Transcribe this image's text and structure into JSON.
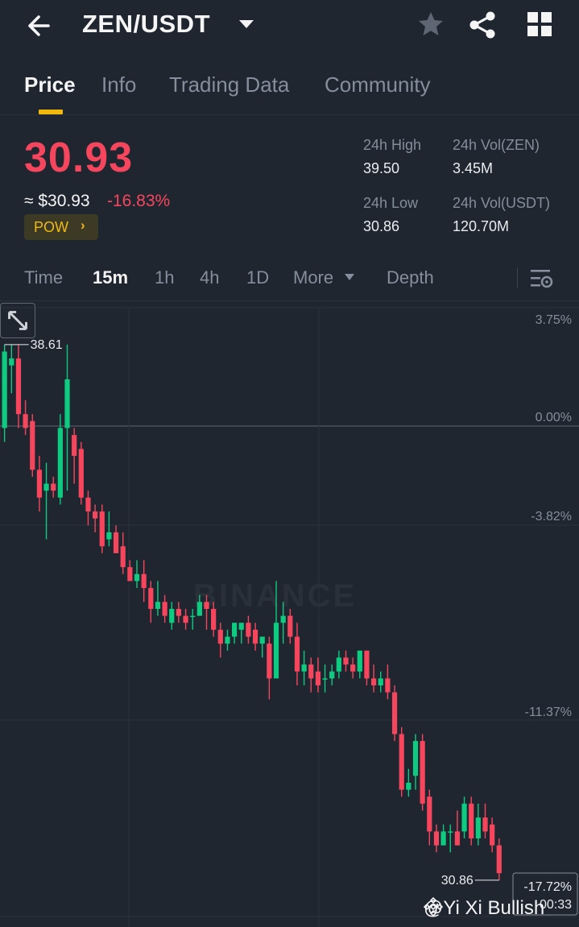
{
  "header": {
    "pair": "ZEN/USDT",
    "back_icon": "arrow-left-icon",
    "star_icon": "star-icon",
    "share_icon": "share-icon",
    "grid_icon": "grid-icon"
  },
  "tabs": [
    {
      "label": "Price"
    },
    {
      "label": "Info"
    },
    {
      "label": "Trading Data"
    },
    {
      "label": "Community"
    }
  ],
  "price": {
    "last": "30.93",
    "usd": "≈ $30.93",
    "change": "-16.83%",
    "tag": "POW",
    "tag_arrow": "›",
    "color_down": "#f6465d",
    "color_up": "#0ecb81",
    "accent": "#f0b90b"
  },
  "stats": {
    "high_label": "24h High",
    "high_value": "39.50",
    "low_label": "24h Low",
    "low_value": "30.86",
    "vol_zen_label": "24h Vol(ZEN)",
    "vol_zen_value": "3.45M",
    "vol_usdt_label": "24h Vol(USDT)",
    "vol_usdt_value": "120.70M"
  },
  "intervals": [
    {
      "label": "Time"
    },
    {
      "label": "15m"
    },
    {
      "label": "1h"
    },
    {
      "label": "4h"
    },
    {
      "label": "1D"
    },
    {
      "label": "More"
    },
    {
      "label": "Depth"
    }
  ],
  "chart_data": {
    "type": "candlestick",
    "watermark": "BINANCE",
    "y_axis_labels": [
      "3.75%",
      "0.00%",
      "-3.82%",
      "-11.37%"
    ],
    "max_label": "38.61",
    "min_label": "30.86",
    "current_change": "-17.72%",
    "current_countdown": "00:33",
    "ylim": [
      30.4,
      39.2
    ],
    "candles": [
      [
        37.6,
        37.2,
        38.0,
        37.1
      ],
      [
        37.4,
        38.5,
        38.6,
        37.2
      ],
      [
        38.3,
        38.4,
        38.6,
        37.9
      ],
      [
        38.4,
        37.6,
        38.6,
        37.4
      ],
      [
        37.6,
        37.4,
        37.8,
        37.3
      ],
      [
        37.5,
        36.8,
        37.6,
        36.7
      ],
      [
        36.8,
        36.4,
        37.0,
        36.2
      ],
      [
        36.5,
        36.6,
        36.9,
        35.8
      ],
      [
        36.6,
        36.5,
        36.7,
        36.4
      ],
      [
        36.4,
        37.4,
        37.6,
        36.3
      ],
      [
        37.4,
        38.1,
        38.6,
        36.5
      ],
      [
        37.3,
        37.0,
        37.4,
        36.6
      ],
      [
        37.1,
        36.4,
        37.2,
        36.3
      ],
      [
        36.4,
        36.2,
        36.5,
        36.0
      ],
      [
        36.2,
        36.1,
        36.3,
        35.9
      ],
      [
        36.2,
        35.7,
        36.3,
        35.6
      ],
      [
        35.8,
        35.9,
        36.2,
        35.7
      ],
      [
        35.9,
        35.6,
        36.0,
        35.6
      ],
      [
        35.7,
        35.4,
        35.9,
        35.3
      ],
      [
        35.4,
        35.2,
        35.5,
        35.2
      ],
      [
        35.2,
        35.3,
        35.5,
        35.1
      ],
      [
        35.3,
        35.1,
        35.5,
        34.9
      ],
      [
        35.1,
        34.8,
        35.2,
        34.6
      ],
      [
        34.8,
        34.9,
        35.2,
        34.7
      ],
      [
        34.9,
        34.7,
        35.0,
        34.6
      ],
      [
        34.6,
        34.8,
        34.9,
        34.5
      ],
      [
        34.8,
        34.7,
        34.9,
        34.6
      ],
      [
        34.7,
        34.6,
        34.8,
        34.5
      ],
      [
        34.7,
        34.7,
        34.8,
        34.5
      ],
      [
        34.7,
        34.9,
        35.0,
        34.7
      ],
      [
        34.9,
        34.8,
        35.0,
        34.5
      ],
      [
        34.8,
        34.5,
        34.9,
        34.4
      ],
      [
        34.5,
        34.3,
        34.6,
        34.1
      ],
      [
        34.3,
        34.4,
        34.5,
        34.2
      ],
      [
        34.4,
        34.6,
        34.6,
        34.3
      ],
      [
        34.5,
        34.6,
        34.6,
        34.3
      ],
      [
        34.6,
        34.4,
        34.7,
        34.3
      ],
      [
        34.5,
        34.3,
        34.6,
        34.2
      ],
      [
        34.3,
        34.4,
        34.4,
        34.1
      ],
      [
        34.3,
        33.8,
        34.4,
        33.5
      ],
      [
        33.8,
        34.6,
        35.2,
        33.8
      ],
      [
        34.6,
        34.7,
        34.9,
        34.3
      ],
      [
        34.7,
        34.4,
        34.8,
        34.3
      ],
      [
        34.4,
        33.9,
        34.6,
        33.7
      ],
      [
        33.9,
        34.0,
        34.2,
        33.7
      ],
      [
        34.0,
        33.8,
        34.1,
        33.6
      ],
      [
        33.9,
        33.7,
        34.1,
        33.6
      ],
      [
        33.8,
        33.8,
        34.0,
        33.6
      ],
      [
        33.8,
        33.9,
        34.0,
        33.7
      ],
      [
        33.9,
        34.1,
        34.2,
        33.8
      ],
      [
        34.1,
        34.0,
        34.2,
        33.9
      ],
      [
        34.0,
        33.9,
        34.1,
        33.8
      ],
      [
        33.9,
        34.2,
        34.2,
        33.8
      ],
      [
        34.2,
        33.8,
        34.2,
        33.7
      ],
      [
        33.8,
        33.7,
        34.0,
        33.6
      ],
      [
        33.7,
        33.8,
        33.9,
        33.6
      ],
      [
        33.8,
        33.6,
        34.0,
        33.5
      ],
      [
        33.6,
        33.0,
        33.7,
        32.9
      ],
      [
        33.0,
        32.2,
        33.1,
        32.1
      ],
      [
        32.2,
        32.3,
        32.5,
        32.1
      ],
      [
        32.4,
        32.9,
        33.0,
        32.2
      ],
      [
        32.9,
        32.0,
        33.0,
        31.9
      ],
      [
        32.1,
        31.6,
        32.2,
        31.4
      ],
      [
        31.6,
        31.4,
        31.7,
        31.3
      ],
      [
        31.4,
        31.6,
        31.7,
        31.4
      ],
      [
        31.6,
        31.6,
        31.7,
        31.3
      ],
      [
        31.6,
        31.4,
        31.9,
        31.4
      ],
      [
        31.6,
        32.0,
        32.1,
        31.5
      ],
      [
        32.0,
        31.5,
        32.1,
        31.4
      ],
      [
        31.5,
        31.8,
        32.0,
        31.4
      ],
      [
        31.8,
        31.6,
        32.0,
        31.5
      ],
      [
        31.7,
        31.4,
        31.8,
        31.3
      ],
      [
        31.4,
        31.0,
        31.5,
        30.9
      ]
    ]
  },
  "footer": {
    "expand_icon": "expand-icon",
    "credit": "@Yi Xi Bullish",
    "credit_icon": "binance-logo-icon"
  }
}
